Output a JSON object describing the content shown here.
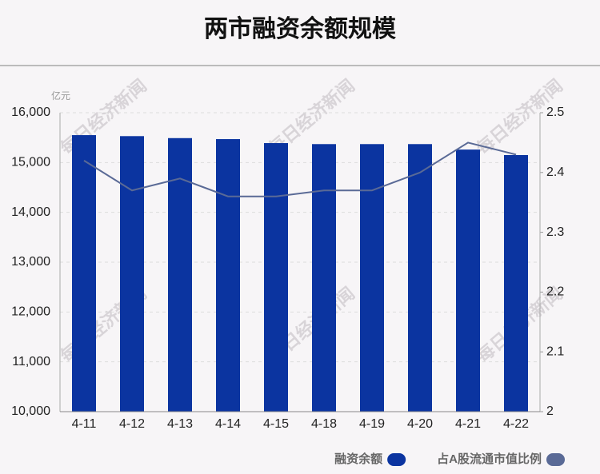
{
  "chart_data": {
    "type": "bar-line",
    "title": "两市融资余额规模",
    "y_unit": "亿元",
    "watermark": "每日经济新闻",
    "categories": [
      "4-11",
      "4-12",
      "4-13",
      "4-14",
      "4-15",
      "4-18",
      "4-19",
      "4-20",
      "4-21",
      "4-22"
    ],
    "series": [
      {
        "name": "融资余额",
        "type": "bar",
        "color": "#0b34a0",
        "values": [
          15550,
          15530,
          15490,
          15470,
          15390,
          15370,
          15370,
          15370,
          15260,
          15150
        ]
      },
      {
        "name": "占A股流通市值比例",
        "type": "line",
        "axis": "y2",
        "color": "#5a6a96",
        "values": [
          2.42,
          2.37,
          2.39,
          2.36,
          2.36,
          2.37,
          2.37,
          2.4,
          2.45,
          2.43
        ]
      }
    ],
    "ylim": [
      10000,
      16000
    ],
    "yticks": [
      {
        "value": 10000,
        "label": "10,000"
      },
      {
        "value": 11000,
        "label": "11,000"
      },
      {
        "value": 12000,
        "label": "12,000"
      },
      {
        "value": 13000,
        "label": "13,000"
      },
      {
        "value": 14000,
        "label": "14,000"
      },
      {
        "value": 15000,
        "label": "15,000"
      },
      {
        "value": 16000,
        "label": "16,000"
      }
    ],
    "y2lim": [
      2,
      2.5
    ],
    "y2ticks": [
      2,
      2.1,
      2.2,
      2.3,
      2.4,
      2.5
    ],
    "grid": true,
    "legend": "bottom-right"
  }
}
